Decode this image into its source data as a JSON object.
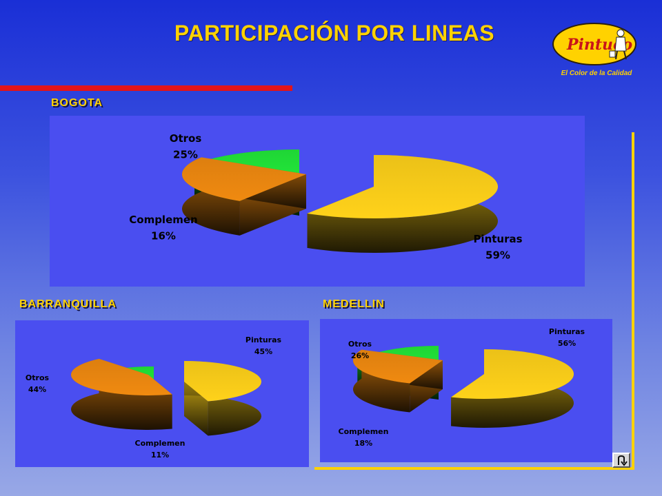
{
  "slide": {
    "title": "PARTICIPACIÓN POR LINEAS",
    "brand": "Pintuco",
    "tagline": "El Color de la Calidad",
    "return_icon": "u-turn-arrow-icon"
  },
  "colors": {
    "background": "#2a3fd8",
    "title": "#ffd200",
    "accent_bar": "#e3141a",
    "panel": "#4a4ef0",
    "pinturas": "#ffd21a",
    "complemen": "#22e83a",
    "otros": "#f08a10"
  },
  "chart_data": [
    {
      "type": "pie",
      "title": "BOGOTA",
      "categories": [
        "Pinturas",
        "Otros",
        "Complemen"
      ],
      "values": [
        59,
        25,
        16
      ],
      "labels": [
        "59%",
        "25%",
        "16%"
      ],
      "exploded": true,
      "three_d": true,
      "legend": "none"
    },
    {
      "type": "pie",
      "title": "BARRANQUILLA",
      "categories": [
        "Pinturas",
        "Otros",
        "Complemen"
      ],
      "values": [
        45,
        44,
        11
      ],
      "labels": [
        "45%",
        "44%",
        "11%"
      ],
      "exploded": true,
      "three_d": true,
      "legend": "none"
    },
    {
      "type": "pie",
      "title": "MEDELLIN",
      "categories": [
        "Pinturas",
        "Otros",
        "Complemen"
      ],
      "values": [
        56,
        26,
        18
      ],
      "labels": [
        "56%",
        "26%",
        "18%"
      ],
      "exploded": true,
      "three_d": true,
      "legend": "none"
    }
  ]
}
